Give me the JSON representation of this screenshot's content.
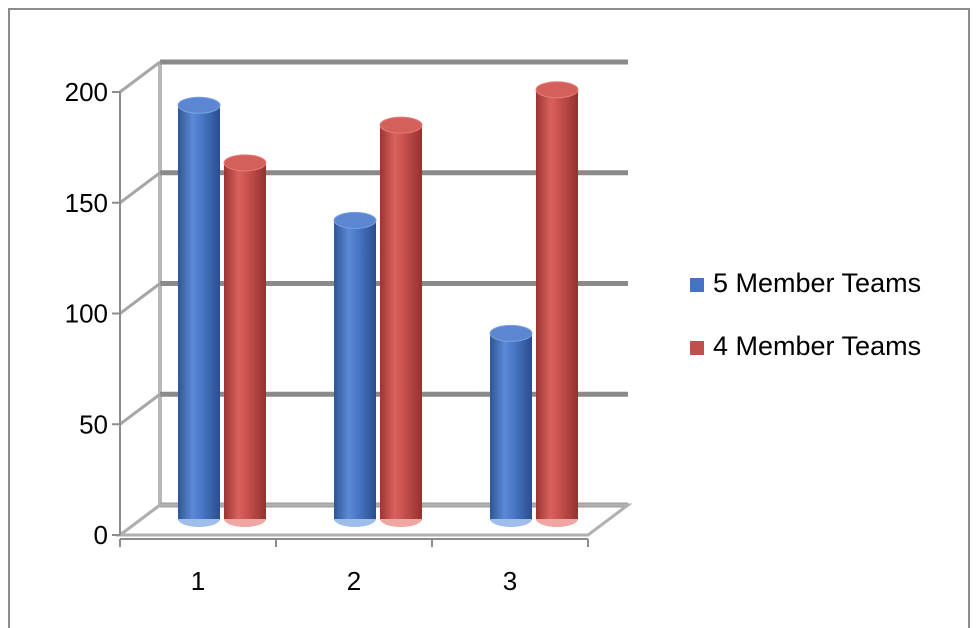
{
  "chart_data": {
    "type": "bar",
    "categories": [
      "1",
      "2",
      "3"
    ],
    "series": [
      {
        "name": "5 Member Teams",
        "values": [
          185,
          133,
          82
        ],
        "color": "#4472c4"
      },
      {
        "name": "4 Member Teams",
        "values": [
          159,
          176,
          192
        ],
        "color": "#c0504d"
      }
    ],
    "ylim": [
      0,
      200
    ],
    "yticks": [
      "0",
      "50",
      "100",
      "150",
      "200"
    ],
    "grid": true,
    "legend": "right",
    "style": "3d-cylinder"
  }
}
